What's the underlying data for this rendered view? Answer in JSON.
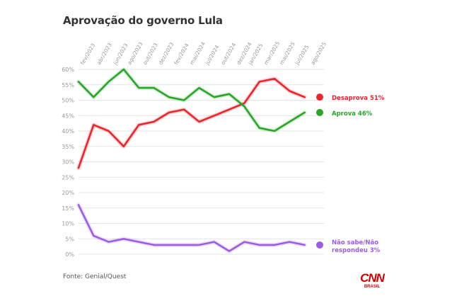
{
  "title": "Aprovação do governo Lula",
  "source": "Fonte: Genial/Quest",
  "logo": {
    "main": "CNN",
    "sub": "BRASIL"
  },
  "colors": {
    "desaprova": "#e8262c",
    "aprova": "#2aa52a",
    "nao_sabe": "#9b5de5",
    "grid": "#e3e3e3",
    "tick": "#999999",
    "logo": "#cc0000"
  },
  "chart_data": {
    "type": "line",
    "x": [
      "fev/2023",
      "abr/2023",
      "jun/2023",
      "ago/2023",
      "out/2023",
      "dez/2023",
      "fev/2024",
      "mai/2024",
      "jul/2024",
      "out/2024",
      "dez/2024",
      "jan/2025",
      "mar/2025",
      "mai/2025",
      "jul/2025",
      "ago/2025"
    ],
    "x_positions": [
      0,
      1.05,
      2.1,
      3.0,
      4.0,
      5.0,
      6.0,
      7.0,
      8.0,
      9.0,
      10.0,
      10.75,
      11.75,
      12.75,
      13.75,
      14.75
    ],
    "y_ticks": [
      0,
      5,
      10,
      15,
      20,
      25,
      30,
      35,
      40,
      45,
      50,
      55,
      60
    ],
    "y_tick_labels": [
      "0%",
      "5%",
      "10%",
      "15%",
      "20%",
      "25%",
      "30%",
      "35%",
      "40%",
      "45%",
      "50%",
      "55%",
      "60%"
    ],
    "ylim": [
      0,
      60
    ],
    "grid": true,
    "series": [
      {
        "name": "Desaprova 51%",
        "key": "desaprova",
        "x": [
          0,
          1,
          2,
          3,
          4,
          5,
          6,
          7,
          8,
          9,
          10,
          11,
          12,
          13,
          14,
          15,
          16
        ],
        "values": [
          28,
          42,
          40,
          35,
          42,
          43,
          46,
          47,
          43,
          45,
          47,
          49,
          56,
          57,
          53,
          51,
          51
        ]
      },
      {
        "name": "Aprova 46%",
        "key": "aprova",
        "x": [
          0,
          1,
          2,
          3,
          4,
          5,
          6,
          7,
          8,
          9,
          10,
          11,
          12,
          13,
          14,
          15,
          16
        ],
        "values": [
          56,
          51,
          56,
          60,
          54,
          54,
          51,
          50,
          54,
          51,
          52,
          48,
          41,
          40,
          43,
          46,
          46
        ]
      },
      {
        "name": "Não sabe/Não respondeu 3%",
        "key": "nao_sabe",
        "x": [
          0,
          1,
          2,
          3,
          4,
          5,
          6,
          7,
          8,
          9,
          10,
          11,
          12,
          13,
          14,
          15,
          16
        ],
        "values": [
          16,
          6,
          4,
          5,
          4,
          3,
          3,
          3,
          3,
          4,
          1,
          4,
          3,
          3,
          4,
          3,
          3
        ]
      }
    ],
    "end_labels": {
      "desaprova": [
        "Desaprova 51%"
      ],
      "aprova": [
        "Aprova 46%"
      ],
      "nao_sabe": [
        "Não sabe/Não",
        "respondeu 3%"
      ]
    }
  }
}
